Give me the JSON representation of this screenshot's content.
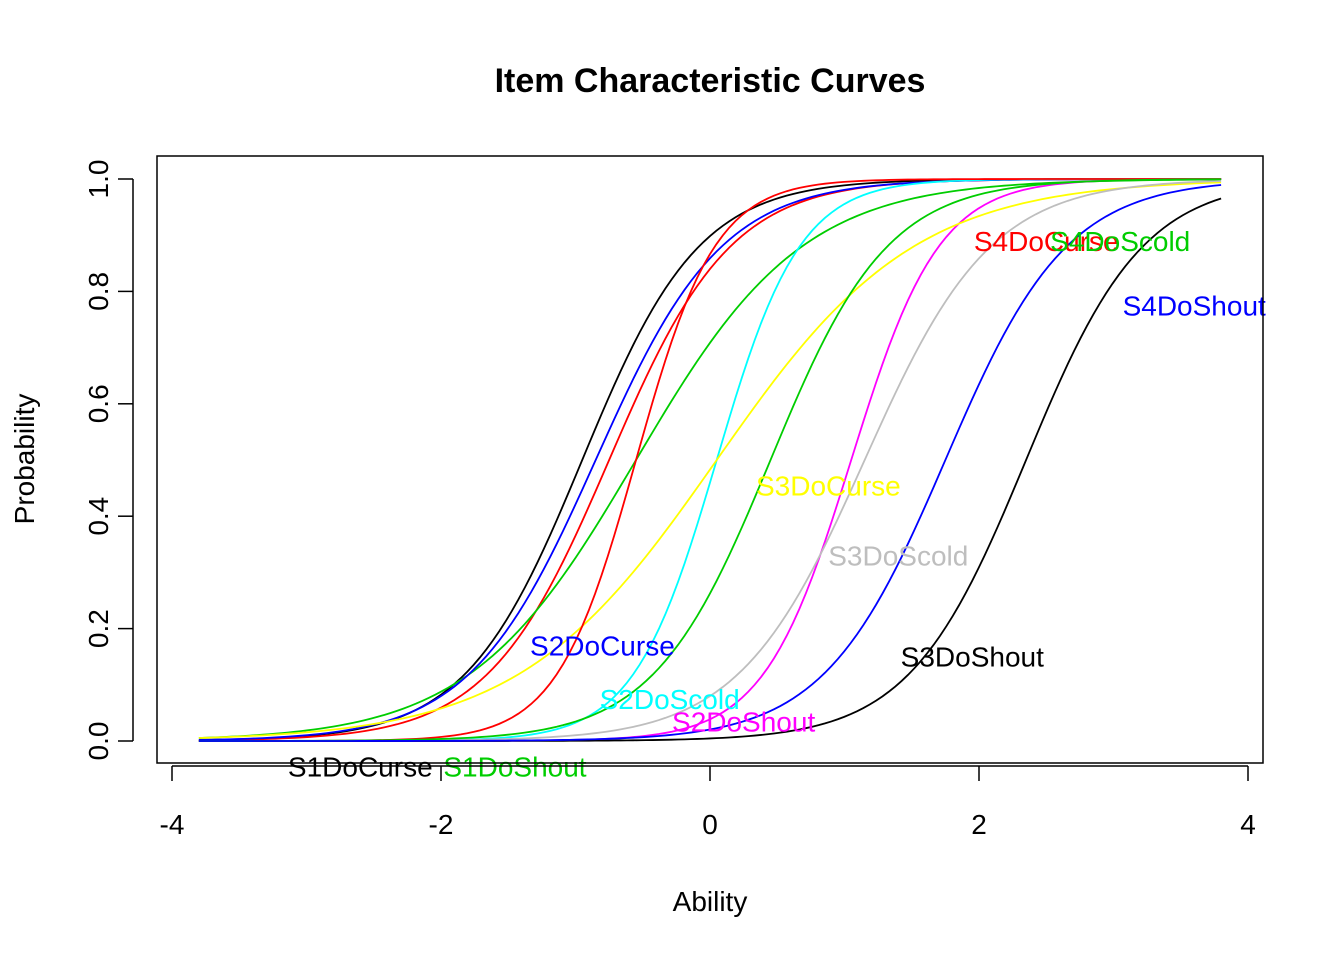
{
  "chart_data": {
    "type": "line",
    "title": "Item Characteristic Curves",
    "xlabel": "Ability",
    "ylabel": "Probability",
    "xlim": [
      -4,
      4
    ],
    "ylim": [
      0,
      1
    ],
    "x_ticks": [
      "-4",
      "-2",
      "0",
      "2",
      "4"
    ],
    "y_ticks": [
      "0.0",
      "0.2",
      "0.4",
      "0.6",
      "0.8",
      "1.0"
    ],
    "grid": false,
    "legend": "none",
    "x_range": [
      -3.8,
      3.8
    ],
    "series": [
      {
        "color": "#000000",
        "a": 1.35,
        "b": -0.95
      },
      {
        "color": "#FF0000",
        "a": 1.3,
        "b": -0.75
      },
      {
        "color": "#00CD00",
        "a": 0.95,
        "b": -0.55
      },
      {
        "color": "#0000FF",
        "a": 1.25,
        "b": -0.85
      },
      {
        "color": "#00FFFF",
        "a": 1.9,
        "b": 0.05
      },
      {
        "color": "#FF00FF",
        "a": 1.8,
        "b": 1.05
      },
      {
        "color": "#FFFF00",
        "a": 0.8,
        "b": 0.05
      },
      {
        "color": "#BEBEBE",
        "a": 1.25,
        "b": 1.15
      },
      {
        "color": "#000000",
        "a": 1.35,
        "b": 2.35
      },
      {
        "color": "#FF0000",
        "a": 2.0,
        "b": -0.55
      },
      {
        "color": "#00CD00",
        "a": 1.35,
        "b": 0.45
      },
      {
        "color": "#0000FF",
        "a": 1.3,
        "b": 1.75
      }
    ],
    "annotations": [
      {
        "text": "S1DoCurse",
        "color": "#000000",
        "x": -2.6,
        "y": -0.045
      },
      {
        "text": "S1DoShout",
        "color": "#00CD00",
        "x": -1.45,
        "y": -0.045
      },
      {
        "text": "S2DoCurse",
        "color": "#0000FF",
        "x": -0.8,
        "y": 0.17
      },
      {
        "text": "S2DoScold",
        "color": "#00FFFF",
        "x": -0.3,
        "y": 0.075
      },
      {
        "text": "S2DoShout",
        "color": "#FF00FF",
        "x": 0.25,
        "y": 0.035
      },
      {
        "text": "S3DoCurse",
        "color": "#FFFF00",
        "x": 0.88,
        "y": 0.455
      },
      {
        "text": "S3DoScold",
        "color": "#BEBEBE",
        "x": 1.4,
        "y": 0.33
      },
      {
        "text": "S3DoShout",
        "color": "#000000",
        "x": 1.95,
        "y": 0.15
      },
      {
        "text": "S4DoCurse",
        "color": "#FF0000",
        "x": 2.5,
        "y": 0.89
      },
      {
        "text": "S4DoScold",
        "color": "#00CD00",
        "x": 3.05,
        "y": 0.89
      },
      {
        "text": "S4DoShout",
        "color": "#0000FF",
        "x": 3.6,
        "y": 0.775
      }
    ]
  }
}
